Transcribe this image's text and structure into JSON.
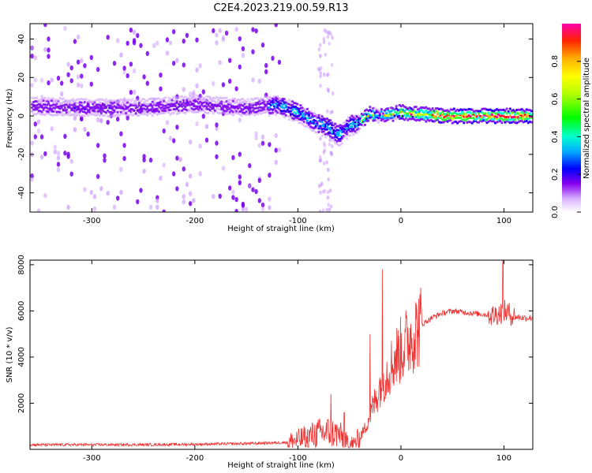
{
  "title": "C2E4.2023.219.00.59.R13",
  "chart_data": [
    {
      "type": "heatmap",
      "xlabel": "Height of straight line (km)",
      "ylabel": "Frequency (Hz)",
      "xlim": [
        -360,
        128
      ],
      "ylim": [
        -50,
        48
      ],
      "xticks": [
        -300,
        -200,
        -100,
        0,
        100
      ],
      "yticks": [
        -40,
        -20,
        0,
        20,
        40
      ],
      "grid": false,
      "ridge": {
        "x": [
          -360,
          -300,
          -250,
          -200,
          -150,
          -120,
          -100,
          -80,
          -70,
          -60,
          -50,
          -40,
          -30,
          -20,
          -10,
          0,
          10,
          20,
          40,
          60,
          80,
          100,
          128
        ],
        "y": [
          5,
          4,
          4,
          6,
          4,
          6,
          2,
          -4,
          -6,
          -10,
          -5,
          -3,
          1,
          0,
          1,
          2,
          1,
          1,
          0,
          0,
          0,
          0,
          0
        ]
      },
      "colorbar": {
        "label": "Normalized spectral amplitude",
        "range": [
          0.0,
          1.0
        ],
        "ticks": [
          "0.0",
          "0.2",
          "0.4",
          "0.6",
          "0.8"
        ]
      }
    },
    {
      "type": "line",
      "xlabel": "Height of straight line (km)",
      "ylabel": "SNR (10 * v/v)",
      "xlim": [
        -360,
        128
      ],
      "ylim": [
        0,
        8200
      ],
      "xticks": [
        -300,
        -200,
        -100,
        0,
        100
      ],
      "yticks": [
        2000,
        4000,
        6000,
        8000
      ],
      "grid": false,
      "color": "#ee3333",
      "series": [
        {
          "x": [
            -360,
            -300,
            -250,
            -200,
            -150,
            -110,
            -100,
            -90,
            -80,
            -70,
            -60,
            -50,
            -45,
            -40,
            -35,
            -30,
            -25,
            -20,
            -15,
            -10,
            -5,
            0,
            10,
            20,
            30,
            40,
            50,
            60,
            70,
            80,
            90,
            95,
            100,
            105,
            110,
            120,
            128
          ],
          "values": [
            200,
            200,
            200,
            220,
            250,
            300,
            400,
            550,
            700,
            750,
            650,
            200,
            250,
            500,
            900,
            1500,
            2100,
            2800,
            3200,
            3600,
            4000,
            4300,
            4900,
            5400,
            5700,
            5900,
            6000,
            5950,
            5900,
            5850,
            5800,
            5900,
            6000,
            5900,
            5750,
            5700,
            5700
          ]
        }
      ],
      "peaks": {
        "x": [
          -68,
          -55,
          -30,
          -18,
          99
        ],
        "values": [
          2400,
          1600,
          5000,
          7800,
          8200
        ]
      }
    }
  ]
}
